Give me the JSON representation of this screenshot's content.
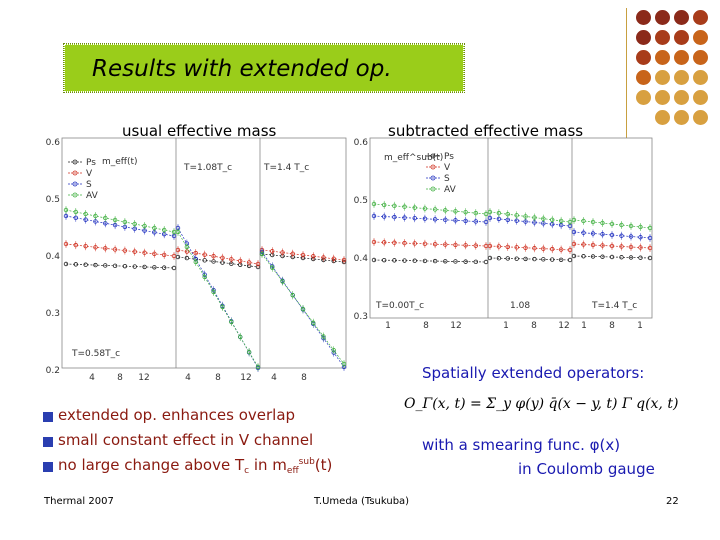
{
  "slide_title": "Results with extended op.",
  "left_plot_heading": "usual effective mass",
  "right_plot_heading": "subtracted effective mass",
  "operators_heading": "Spatially extended operators:",
  "formula_text": "O_Γ(x, t) = Σ_y φ(y) q̄(x − y, t) Γ q(x, t)",
  "smearing": {
    "line1": "with a smearing func. φ(x)",
    "line2": "in Coulomb gauge"
  },
  "bullets": [
    {
      "text": "extended op. enhances overlap"
    },
    {
      "text": "small constant effect in V channel"
    },
    {
      "text_pre": "no large change above T",
      "text_sub": "c",
      "text_mid": " in m",
      "text_sub2": "eff",
      "text_sup": "sub",
      "text_post": "(t)"
    }
  ],
  "footer": {
    "left": "Thermal 2007",
    "center": "T.Umeda (Tsukuba)",
    "right": "22"
  },
  "colors": {
    "title_bg": "#9acd1a",
    "bullet": "#2a3eb0",
    "bullet_text": "#8a1a10",
    "blue_text": "#1a1ab0",
    "dots": [
      "#8b2a1a",
      "#a83c1a",
      "#c8641a",
      "#d8a040"
    ]
  },
  "left_chart": {
    "y_ticks": [
      "0.6",
      "0.5",
      "0.4",
      "0.3",
      "0.2"
    ],
    "legend": [
      "Ps",
      "V",
      "S",
      "AV"
    ],
    "ylabel": "m_eff(t)",
    "panel_labels": [
      "T=0.58T_c",
      "T=1.08T_c",
      "T=1.4 T_c"
    ],
    "x_ticks_1": [
      "4",
      "8",
      "12"
    ],
    "x_ticks_2": [
      "4",
      "8",
      "12"
    ],
    "x_ticks_3": [
      "4",
      "8"
    ]
  },
  "right_chart": {
    "y_ticks": [
      "0.6",
      "0.5",
      "0.4",
      "0.3"
    ],
    "legend": [
      "Ps",
      "V",
      "S",
      "AV"
    ],
    "ylabel": "m_eff^sub(t)",
    "panel_labels": [
      "T=0.00T_c",
      "1.08",
      "T=1.4 T_c"
    ],
    "x_ticks_1": [
      "1",
      "8",
      "12"
    ],
    "x_ticks_2": [
      "1",
      "8",
      "12"
    ],
    "x_ticks_3": [
      "1",
      "8",
      "1"
    ]
  }
}
